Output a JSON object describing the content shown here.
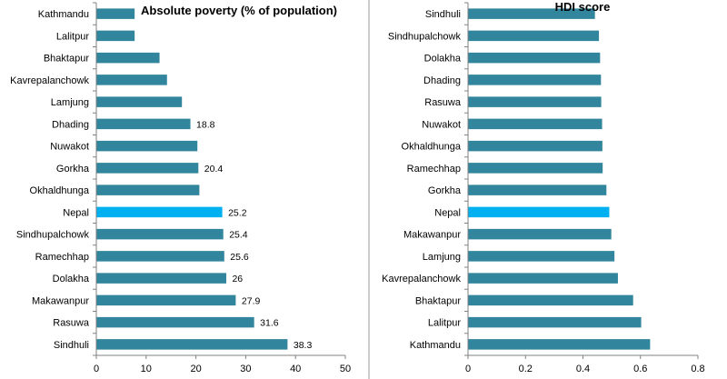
{
  "colors": {
    "bar": "#31859C",
    "highlight": "#00B0F0",
    "axis": "#808080",
    "divider": "#9a9a9a"
  },
  "chart_data": [
    {
      "type": "bar",
      "orientation": "horizontal",
      "title": "Absolute poverty (% of population)",
      "categories": [
        "Kathmandu",
        "Lalitpur",
        "Bhaktapur",
        "Kavrepalanchowk",
        "Lamjung",
        "Dhading",
        "Nuwakot",
        "Gorkha",
        "Okhaldhunga",
        "Nepal",
        "Sindhupalchowk",
        "Ramechhap",
        "Dolakha",
        "Makawanpur",
        "Rasuwa",
        "Sindhuli"
      ],
      "values": [
        7.6,
        7.6,
        12.6,
        14.1,
        17.1,
        18.8,
        20.2,
        20.4,
        20.6,
        25.2,
        25.4,
        25.6,
        26,
        27.9,
        31.6,
        38.3
      ],
      "data_labels": [
        "",
        "",
        "",
        "",
        "",
        "18.8",
        "",
        "20.4",
        "",
        "25.2",
        "25.4",
        "25.6",
        "26",
        "27.9",
        "31.6",
        "38.3"
      ],
      "highlight": "Nepal",
      "xlim": [
        0,
        50
      ],
      "xticks": [
        "0",
        "10",
        "20",
        "30",
        "40",
        "50"
      ]
    },
    {
      "type": "bar",
      "orientation": "horizontal",
      "title": "HDI score",
      "categories": [
        "Sindhuli",
        "Sindhupalchowk",
        "Dolakha",
        "Dhading",
        "Rasuwa",
        "Nuwakot",
        "Okhaldhunga",
        "Ramechhap",
        "Gorkha",
        "Nepal",
        "Makawanpur",
        "Lamjung",
        "Kavrepalanchowk",
        "Bhaktapur",
        "Lalitpur",
        "Kathmandu"
      ],
      "values": [
        0.44,
        0.454,
        0.458,
        0.461,
        0.462,
        0.465,
        0.466,
        0.467,
        0.48,
        0.49,
        0.497,
        0.508,
        0.52,
        0.573,
        0.601,
        0.632
      ],
      "data_labels": [],
      "highlight": "Nepal",
      "xlim": [
        0,
        0.8
      ],
      "xticks": [
        "0",
        "0.2",
        "0.4",
        "0.6",
        "0.8"
      ]
    }
  ]
}
